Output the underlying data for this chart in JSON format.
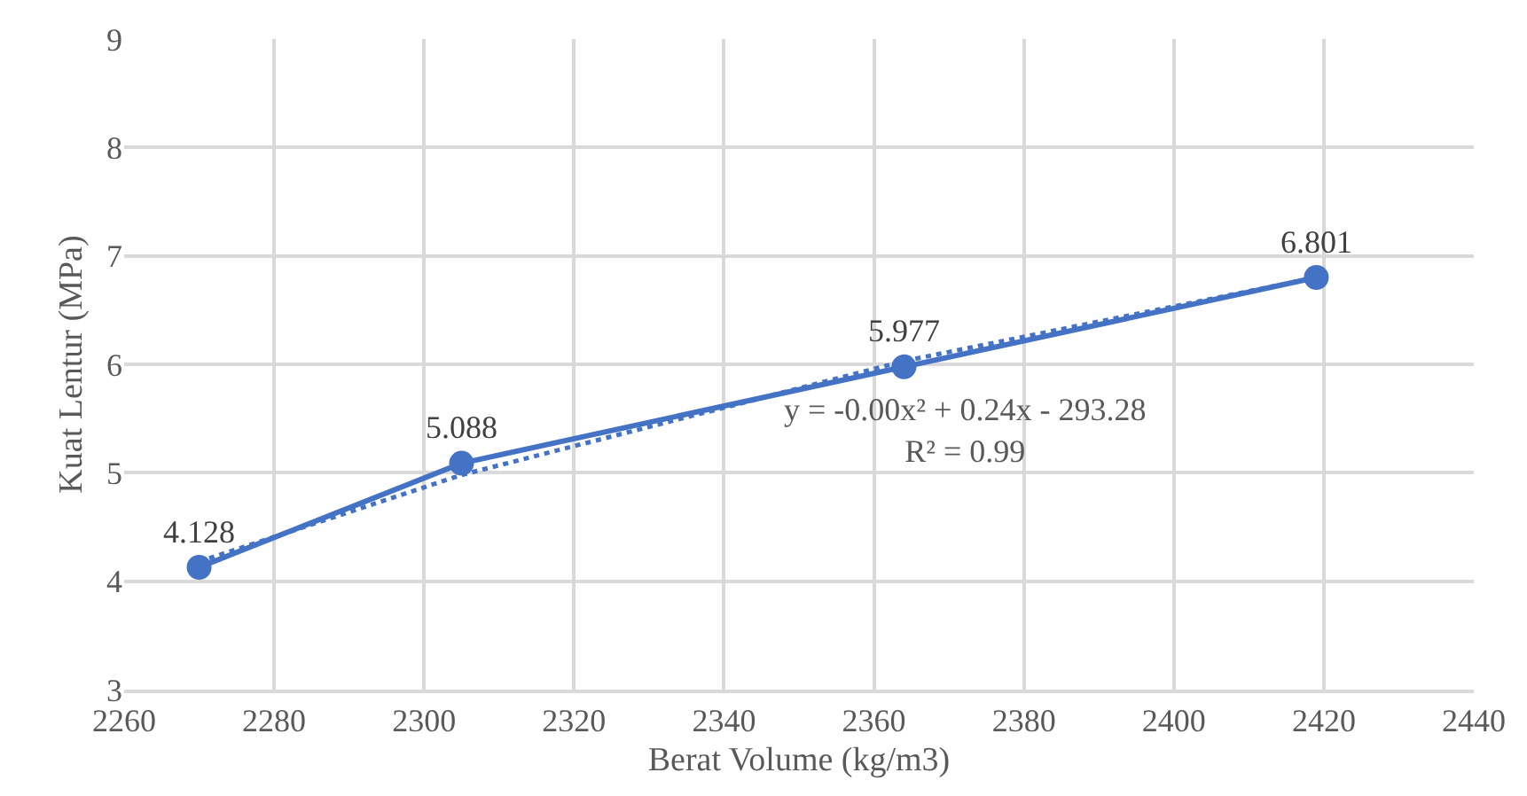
{
  "chart_data": {
    "type": "line",
    "xlabel": "Berat Volume (kg/m3)",
    "ylabel": "Kuat Lentur (MPa)",
    "xlim": [
      2260,
      2440
    ],
    "xticks": [
      2260,
      2280,
      2300,
      2320,
      2340,
      2360,
      2380,
      2400,
      2420,
      2440
    ],
    "ylim": [
      3,
      9
    ],
    "yticks": [
      3,
      4,
      5,
      6,
      7,
      8,
      9
    ],
    "grid": true,
    "series": [
      {
        "color": "#4472c4",
        "x": [
          2270,
          2305,
          2364,
          2419
        ],
        "values": [
          4.128,
          5.088,
          5.977,
          6.801
        ],
        "marker": "circle",
        "line_style": "solid",
        "value_labels": [
          "4.128",
          "5.088",
          "5.977",
          "6.801"
        ]
      },
      {
        "color": "#4472c4",
        "x": [
          2270,
          2305,
          2340,
          2364,
          2419
        ],
        "values": [
          4.18,
          4.98,
          5.6,
          6.03,
          6.8
        ],
        "marker": "none",
        "line_style": "dotted"
      }
    ],
    "annotations": [
      "y = -0.00x² + 0.24x - 293.28\nR² = 0.99"
    ]
  }
}
